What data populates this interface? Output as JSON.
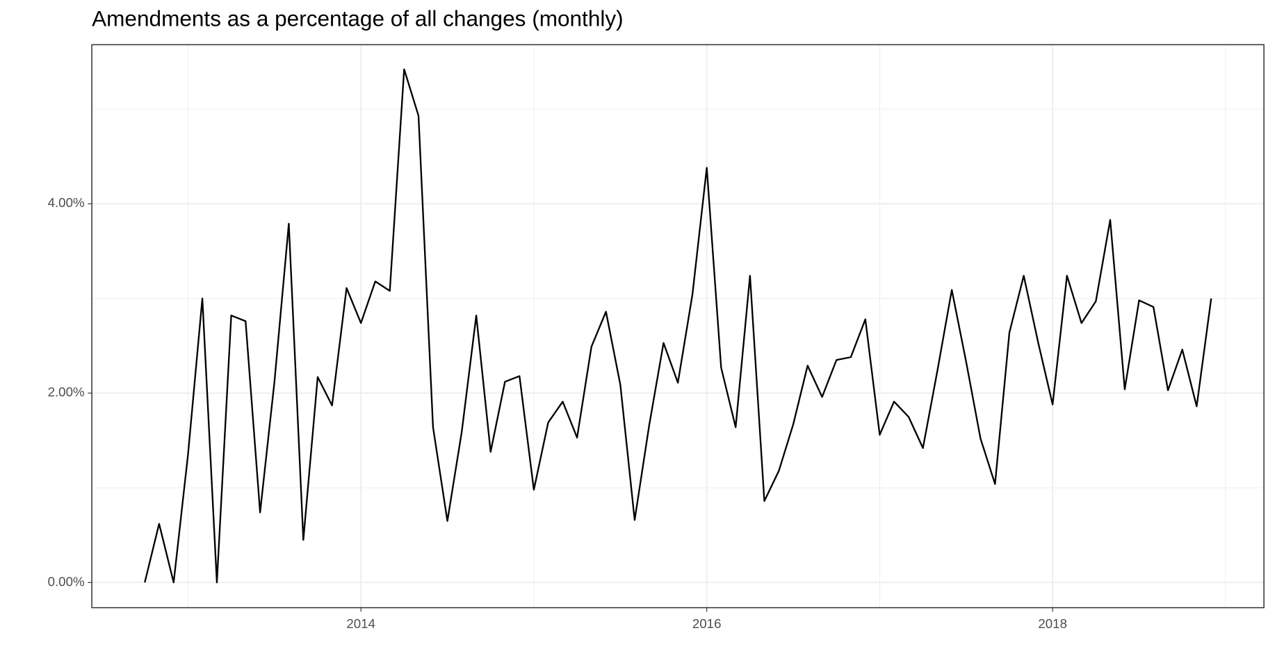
{
  "chart_data": {
    "type": "line",
    "title": "Amendments as a percentage of all changes (monthly)",
    "x": [
      2012.75,
      2012.833,
      2012.917,
      2013,
      2013.083,
      2013.167,
      2013.25,
      2013.333,
      2013.417,
      2013.5,
      2013.583,
      2013.667,
      2013.75,
      2013.833,
      2013.917,
      2014,
      2014.083,
      2014.167,
      2014.25,
      2014.333,
      2014.417,
      2014.5,
      2014.583,
      2014.667,
      2014.75,
      2014.833,
      2014.917,
      2015,
      2015.083,
      2015.167,
      2015.25,
      2015.333,
      2015.417,
      2015.5,
      2015.583,
      2015.667,
      2015.75,
      2015.833,
      2015.917,
      2016,
      2016.083,
      2016.167,
      2016.25,
      2016.333,
      2016.417,
      2016.5,
      2016.583,
      2016.667,
      2016.75,
      2016.833,
      2016.917,
      2017,
      2017.083,
      2017.167,
      2017.25,
      2017.333,
      2017.417,
      2017.5,
      2017.583,
      2017.667,
      2017.75,
      2017.833,
      2017.917,
      2018,
      2018.083,
      2018.167,
      2018.25,
      2018.333,
      2018.417,
      2018.5,
      2018.583,
      2018.667,
      2018.75,
      2018.833,
      2018.917
    ],
    "values": [
      0,
      0.62,
      0,
      1.35,
      3.0,
      0,
      2.82,
      2.76,
      0.74,
      2.12,
      3.79,
      0.45,
      2.17,
      1.87,
      3.11,
      2.74,
      3.18,
      3.08,
      5.42,
      4.93,
      1.64,
      0.65,
      1.59,
      2.82,
      1.38,
      2.12,
      2.18,
      0.98,
      1.69,
      1.91,
      1.53,
      2.49,
      2.86,
      2.09,
      0.66,
      1.66,
      2.53,
      2.11,
      3.04,
      4.38,
      2.27,
      1.64,
      3.24,
      0.86,
      1.18,
      1.67,
      2.29,
      1.96,
      2.35,
      2.38,
      2.78,
      1.56,
      1.91,
      1.75,
      1.42,
      2.23,
      3.09,
      2.33,
      1.52,
      1.04,
      2.64,
      3.24,
      2.53,
      1.88,
      3.24,
      2.74,
      2.97,
      3.83,
      2.04,
      2.98,
      2.91,
      2.03,
      2.46,
      1.86,
      3.0
    ],
    "color": "#000000",
    "xlim": [
      2012.444,
      2019.222
    ],
    "xticks": [
      2014,
      2016,
      2018
    ],
    "ylim": [
      -0.266,
      5.68
    ],
    "yticks": [
      {
        "value": 0,
        "label": "0.00%"
      },
      {
        "value": 2,
        "label": "2.00%"
      },
      {
        "value": 4,
        "label": "4.00%"
      }
    ],
    "grid": true
  }
}
